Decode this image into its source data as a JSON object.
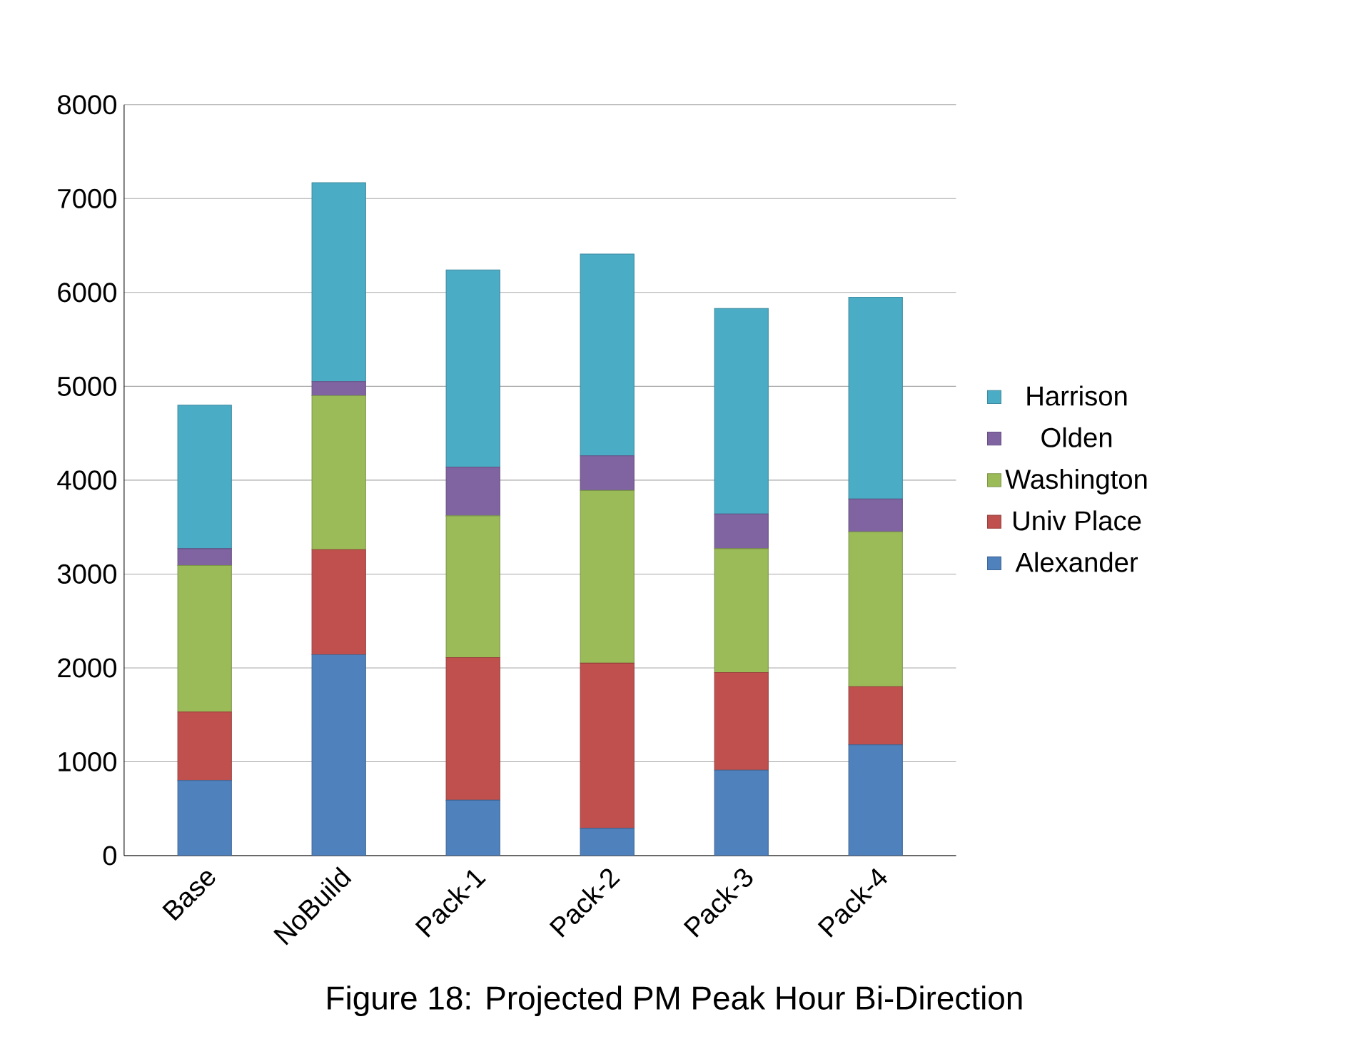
{
  "chart_data": {
    "type": "bar",
    "stacked": true,
    "categories": [
      "Base",
      "NoBuild",
      "Pack-1",
      "Pack-2",
      "Pack-3",
      "Pack-4"
    ],
    "series": [
      {
        "name": "Alexander",
        "color": "#4f81bd",
        "values": [
          800,
          2140,
          590,
          290,
          910,
          1180
        ]
      },
      {
        "name": "Univ Place",
        "color": "#c0504d",
        "values": [
          730,
          1120,
          1520,
          1760,
          1040,
          620
        ]
      },
      {
        "name": "Washington",
        "color": "#9bbb59",
        "values": [
          1560,
          1640,
          1510,
          1840,
          1320,
          1650
        ]
      },
      {
        "name": "Olden",
        "color": "#8064a2",
        "values": [
          180,
          150,
          520,
          370,
          370,
          350
        ]
      },
      {
        "name": "Harrison",
        "color": "#4bacc6",
        "values": [
          1530,
          2120,
          2100,
          2150,
          2190,
          2150
        ]
      }
    ],
    "ylim": [
      0,
      8000
    ],
    "yticks": [
      0,
      1000,
      2000,
      3000,
      4000,
      5000,
      6000,
      7000,
      8000
    ],
    "grid": "y",
    "legend": "right",
    "annotations": [
      "Figure 18: Projected PM Peak Hour Bi-Direction"
    ]
  }
}
